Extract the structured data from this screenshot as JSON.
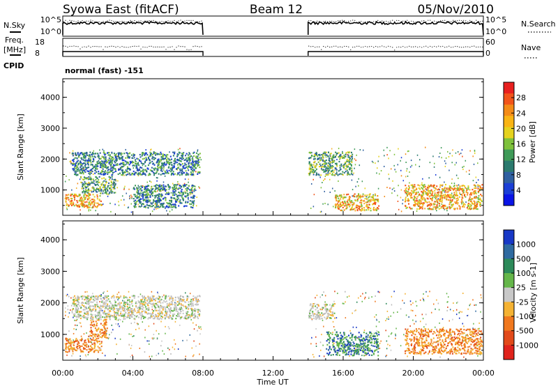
{
  "header": {
    "title_left": "Syowa East (fitACF)",
    "title_center": "Beam 12",
    "title_right": "05/Nov/2010"
  },
  "strip": {
    "nsky_label": "N.Sky",
    "nsky_ticks": [
      "10^5",
      "10^0"
    ],
    "nsearch_label": "N.Search",
    "nsearch_ticks": [
      "10^5",
      "10^0"
    ],
    "freq_label_1": "Freq.",
    "freq_label_2": "[MHz]",
    "freq_ticks": [
      "18",
      "8"
    ],
    "nave_label": "Nave",
    "nave_ticks": [
      "60",
      "0"
    ],
    "cpid_label": "CPID",
    "cpid_value": "normal (fast) -151"
  },
  "chart_data": [
    {
      "type": "heatmap",
      "name": "power",
      "ylabel": "Slant Range [km]",
      "yticks": [
        "4000",
        "3000",
        "2000",
        "1000"
      ],
      "ylim_km": [
        180,
        4600
      ],
      "xlim_hours": [
        0,
        24
      ],
      "colorbar": {
        "label": "Power [dB]",
        "ticks": [
          "28",
          "24",
          "20",
          "16",
          "12",
          "8",
          "4"
        ],
        "colors": [
          "#e8201f",
          "#f2541a",
          "#f48b17",
          "#f9b414",
          "#e5d21e",
          "#7ec13c",
          "#3f9a58",
          "#2b7a6e",
          "#2f5fa0",
          "#1b3fd6",
          "#0a14e6"
        ]
      },
      "data_gap_hours": [
        8,
        14
      ],
      "echo_regions": [
        {
          "t0": 0.1,
          "t1": 2.2,
          "r0": 450,
          "r1": 900,
          "level": "high"
        },
        {
          "t0": 1.0,
          "t1": 3.0,
          "r0": 900,
          "r1": 1450,
          "level": "mid"
        },
        {
          "t0": 0.5,
          "t1": 7.8,
          "r0": 1500,
          "r1": 2250,
          "level": "low"
        },
        {
          "t0": 4.0,
          "t1": 7.5,
          "r0": 450,
          "r1": 1200,
          "level": "low"
        },
        {
          "t0": 14.0,
          "t1": 16.5,
          "r0": 1500,
          "r1": 2250,
          "level": "mid"
        },
        {
          "t0": 15.5,
          "t1": 18.0,
          "r0": 350,
          "r1": 900,
          "level": "high"
        },
        {
          "t0": 19.5,
          "t1": 23.9,
          "r0": 400,
          "r1": 1200,
          "level": "high"
        }
      ]
    },
    {
      "type": "heatmap",
      "name": "velocity",
      "ylabel": "Slant Range [km]",
      "yticks": [
        "4000",
        "3000",
        "2000",
        "1000"
      ],
      "ylim_km": [
        180,
        4600
      ],
      "xlim_hours": [
        0,
        24
      ],
      "xticks": [
        "00:00",
        "04:00",
        "08:00",
        "12:00",
        "16:00",
        "20:00",
        "00:00"
      ],
      "xlabel": "Time UT",
      "colorbar": {
        "label": "Velocity [m s-1]",
        "ticks": [
          "1000",
          "500",
          "100",
          "25",
          "-25",
          "-100",
          "-500",
          "-1000"
        ],
        "colors": [
          "#1838c6",
          "#2f6aa0",
          "#2d8a5a",
          "#65b64a",
          "#c8c8c8",
          "#f4b233",
          "#f0781e",
          "#e24a1a",
          "#e0231c"
        ]
      },
      "data_gap_hours": [
        8,
        14
      ],
      "echo_regions": [
        {
          "t0": 0.1,
          "t1": 2.2,
          "r0": 450,
          "r1": 900,
          "level": "negative"
        },
        {
          "t0": 1.5,
          "t1": 2.5,
          "r0": 900,
          "r1": 1500,
          "level": "negative"
        },
        {
          "t0": 0.5,
          "t1": 7.8,
          "r0": 1500,
          "r1": 2250,
          "level": "ground"
        },
        {
          "t0": 14.0,
          "t1": 15.5,
          "r0": 1500,
          "r1": 2000,
          "level": "ground"
        },
        {
          "t0": 15.0,
          "t1": 18.0,
          "r0": 350,
          "r1": 1100,
          "level": "positive"
        },
        {
          "t0": 19.5,
          "t1": 23.9,
          "r0": 400,
          "r1": 1200,
          "level": "negative"
        }
      ]
    }
  ],
  "xaxis": {
    "ticks": [
      "00:00",
      "04:00",
      "08:00",
      "12:00",
      "16:00",
      "20:00",
      "00:00"
    ],
    "label": "Time UT"
  }
}
